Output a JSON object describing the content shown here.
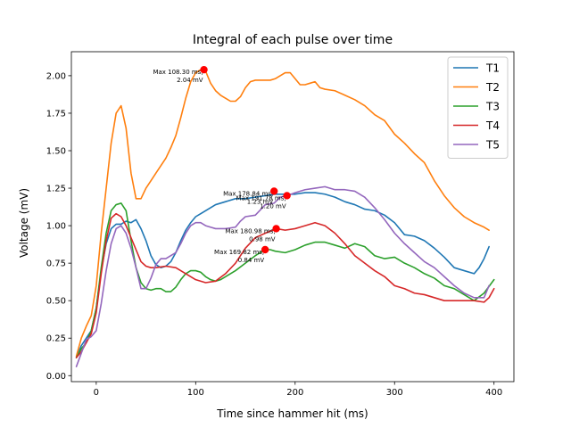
{
  "chart_data": {
    "type": "line",
    "title": "Integral of each pulse over time",
    "xlabel": "Time since hammer hit (ms)",
    "ylabel": "Voltage (mV)",
    "xlim": [
      -25,
      420
    ],
    "ylim": [
      -0.04,
      2.16
    ],
    "xticks": [
      0,
      100,
      200,
      300,
      400
    ],
    "xtick_labels": [
      "0",
      "100",
      "200",
      "300",
      "400"
    ],
    "yticks": [
      0.0,
      0.25,
      0.5,
      0.75,
      1.0,
      1.25,
      1.5,
      1.75,
      2.0
    ],
    "ytick_labels": [
      "0.00",
      "0.25",
      "0.50",
      "0.75",
      "1.00",
      "1.25",
      "1.50",
      "1.75",
      "2.00"
    ],
    "grid": false,
    "legend_position": "top-right",
    "series": [
      {
        "name": "T1",
        "color": "#1f77b4",
        "x": [
          -20,
          -15,
          -10,
          -5,
          0,
          5,
          10,
          15,
          20,
          25,
          30,
          35,
          40,
          45,
          50,
          55,
          60,
          65,
          70,
          75,
          80,
          85,
          90,
          95,
          100,
          105,
          110,
          120,
          130,
          140,
          150,
          160,
          170,
          180,
          190,
          200,
          210,
          220,
          230,
          240,
          250,
          260,
          270,
          280,
          290,
          300,
          310,
          320,
          330,
          340,
          350,
          360,
          370,
          380,
          385,
          390,
          395
        ],
        "y": [
          0.12,
          0.2,
          0.25,
          0.3,
          0.45,
          0.7,
          0.88,
          0.98,
          1.01,
          1.01,
          1.03,
          1.02,
          1.04,
          0.98,
          0.9,
          0.8,
          0.74,
          0.72,
          0.73,
          0.76,
          0.82,
          0.9,
          0.97,
          1.02,
          1.06,
          1.08,
          1.1,
          1.14,
          1.16,
          1.18,
          1.18,
          1.19,
          1.2,
          1.21,
          1.21,
          1.21,
          1.22,
          1.22,
          1.21,
          1.19,
          1.16,
          1.14,
          1.11,
          1.1,
          1.07,
          1.02,
          0.94,
          0.93,
          0.9,
          0.85,
          0.79,
          0.72,
          0.7,
          0.68,
          0.72,
          0.78,
          0.86
        ]
      },
      {
        "name": "T2",
        "color": "#ff7f0e",
        "x": [
          -20,
          -15,
          -10,
          -5,
          0,
          5,
          10,
          15,
          20,
          25,
          30,
          35,
          40,
          45,
          50,
          55,
          60,
          65,
          70,
          75,
          80,
          85,
          90,
          95,
          100,
          105,
          108.3,
          110,
          115,
          120,
          125,
          130,
          135,
          140,
          145,
          150,
          155,
          160,
          165,
          170,
          175,
          180,
          185,
          190,
          195,
          200,
          205,
          210,
          215,
          220,
          225,
          230,
          240,
          250,
          260,
          270,
          280,
          290,
          300,
          310,
          320,
          330,
          340,
          350,
          360,
          370,
          380,
          390,
          395
        ],
        "y": [
          0.13,
          0.25,
          0.33,
          0.4,
          0.6,
          0.95,
          1.25,
          1.55,
          1.75,
          1.8,
          1.65,
          1.35,
          1.18,
          1.18,
          1.25,
          1.3,
          1.35,
          1.4,
          1.45,
          1.52,
          1.6,
          1.72,
          1.85,
          1.96,
          2.02,
          2.04,
          2.04,
          2.03,
          1.95,
          1.9,
          1.87,
          1.85,
          1.83,
          1.83,
          1.86,
          1.92,
          1.96,
          1.97,
          1.97,
          1.97,
          1.97,
          1.98,
          2.0,
          2.02,
          2.02,
          1.98,
          1.94,
          1.94,
          1.95,
          1.96,
          1.92,
          1.91,
          1.9,
          1.87,
          1.84,
          1.8,
          1.74,
          1.7,
          1.61,
          1.55,
          1.48,
          1.42,
          1.3,
          1.2,
          1.12,
          1.06,
          1.02,
          0.99,
          0.97
        ]
      },
      {
        "name": "T3",
        "color": "#2ca02c",
        "x": [
          -20,
          -15,
          -10,
          -5,
          0,
          5,
          10,
          15,
          20,
          25,
          30,
          35,
          40,
          45,
          50,
          55,
          60,
          65,
          70,
          75,
          80,
          85,
          90,
          95,
          100,
          105,
          110,
          115,
          120,
          125,
          130,
          140,
          150,
          160,
          169.82,
          175,
          180,
          190,
          200,
          210,
          220,
          230,
          240,
          250,
          260,
          270,
          280,
          290,
          300,
          310,
          320,
          330,
          340,
          350,
          360,
          370,
          380,
          390,
          400
        ],
        "y": [
          0.12,
          0.18,
          0.22,
          0.3,
          0.45,
          0.72,
          0.95,
          1.1,
          1.14,
          1.15,
          1.1,
          0.9,
          0.72,
          0.62,
          0.58,
          0.57,
          0.58,
          0.58,
          0.56,
          0.56,
          0.59,
          0.64,
          0.68,
          0.7,
          0.7,
          0.69,
          0.66,
          0.64,
          0.63,
          0.64,
          0.66,
          0.7,
          0.75,
          0.8,
          0.84,
          0.84,
          0.83,
          0.82,
          0.84,
          0.87,
          0.89,
          0.89,
          0.87,
          0.85,
          0.88,
          0.86,
          0.8,
          0.78,
          0.79,
          0.75,
          0.72,
          0.68,
          0.65,
          0.6,
          0.58,
          0.54,
          0.5,
          0.55,
          0.64
        ]
      },
      {
        "name": "T4",
        "color": "#d62728",
        "x": [
          -20,
          -15,
          -10,
          -5,
          0,
          5,
          10,
          15,
          20,
          25,
          30,
          35,
          40,
          45,
          50,
          55,
          60,
          70,
          80,
          90,
          100,
          110,
          120,
          130,
          140,
          150,
          160,
          170,
          180.98,
          190,
          200,
          210,
          220,
          230,
          240,
          250,
          260,
          270,
          280,
          290,
          300,
          310,
          320,
          330,
          340,
          350,
          360,
          370,
          380,
          390,
          395,
          400
        ],
        "y": [
          0.12,
          0.16,
          0.22,
          0.28,
          0.42,
          0.68,
          0.9,
          1.05,
          1.08,
          1.06,
          1.0,
          0.92,
          0.84,
          0.76,
          0.73,
          0.72,
          0.72,
          0.73,
          0.72,
          0.68,
          0.64,
          0.62,
          0.63,
          0.68,
          0.75,
          0.85,
          0.92,
          0.95,
          0.98,
          0.97,
          0.98,
          1.0,
          1.02,
          1.0,
          0.95,
          0.88,
          0.8,
          0.75,
          0.7,
          0.66,
          0.6,
          0.58,
          0.55,
          0.54,
          0.52,
          0.5,
          0.5,
          0.5,
          0.5,
          0.49,
          0.52,
          0.58
        ]
      },
      {
        "name": "T5",
        "color": "#9467bd",
        "x": [
          -20,
          -15,
          -10,
          -5,
          0,
          5,
          10,
          15,
          20,
          25,
          30,
          35,
          40,
          45,
          50,
          55,
          60,
          65,
          70,
          75,
          80,
          85,
          90,
          95,
          100,
          105,
          110,
          120,
          130,
          140,
          145,
          150,
          160,
          170,
          178.84,
          185,
          191.78,
          200,
          210,
          220,
          230,
          240,
          250,
          260,
          270,
          280,
          290,
          300,
          310,
          320,
          330,
          340,
          350,
          360,
          370,
          380,
          390,
          395
        ],
        "y": [
          0.06,
          0.15,
          0.24,
          0.26,
          0.3,
          0.48,
          0.7,
          0.88,
          0.98,
          1.0,
          0.95,
          0.85,
          0.72,
          0.58,
          0.58,
          0.65,
          0.74,
          0.78,
          0.78,
          0.8,
          0.82,
          0.88,
          0.95,
          1.0,
          1.02,
          1.02,
          1.0,
          0.98,
          0.98,
          0.99,
          1.03,
          1.06,
          1.07,
          1.14,
          1.15,
          1.19,
          1.2,
          1.22,
          1.24,
          1.25,
          1.26,
          1.24,
          1.24,
          1.23,
          1.19,
          1.12,
          1.04,
          0.95,
          0.88,
          0.82,
          0.76,
          0.72,
          0.66,
          0.6,
          0.55,
          0.52,
          0.52,
          0.6
        ]
      }
    ],
    "max_markers": [
      {
        "x": 108.3,
        "y": 2.04,
        "color": "#ff0000",
        "label_line1": "Max 108.30 ms,",
        "label_line2": "2.04 mV"
      },
      {
        "x": 178.84,
        "y": 1.23,
        "color": "#ff0000",
        "label_line1": "Max 178.84 ms,",
        "label_line2": "1.23 mV"
      },
      {
        "x": 191.78,
        "y": 1.2,
        "color": "#ff0000",
        "label_line1": "Max 191.78 ms,",
        "label_line2": "1.20 mV"
      },
      {
        "x": 180.98,
        "y": 0.98,
        "color": "#ff0000",
        "label_line1": "Max 180.98 ms,",
        "label_line2": "0.98 mV"
      },
      {
        "x": 169.82,
        "y": 0.84,
        "color": "#ff0000",
        "label_line1": "Max 169.82 ms,",
        "label_line2": "0.84 mV"
      }
    ]
  }
}
